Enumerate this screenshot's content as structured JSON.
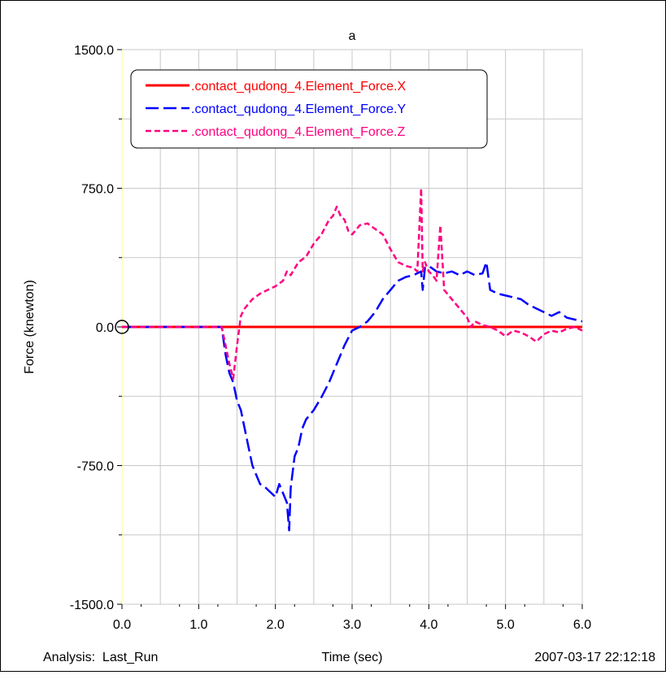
{
  "chart_data": {
    "type": "line",
    "title": "a",
    "xlabel": "Time (sec)",
    "ylabel": "Force (knewton)",
    "xlim": [
      0.0,
      6.0
    ],
    "ylim": [
      -1500.0,
      1500.0
    ],
    "x_ticks": [
      "0.0",
      "1.0",
      "2.0",
      "3.0",
      "4.0",
      "5.0",
      "6.0"
    ],
    "x_tick_values": [
      0,
      1,
      2,
      3,
      4,
      5,
      6
    ],
    "y_ticks": [
      "1500.0",
      "750.0",
      "0.0",
      "-750.0",
      "-1500.0"
    ],
    "y_tick_values": [
      1500,
      750,
      0,
      -750,
      -1500
    ],
    "grid": true,
    "legend_position": "top-left",
    "footer_left": "Analysis:  Last_Run",
    "footer_right": "2007-03-17 22:12:18",
    "series": [
      {
        "name": ".contact_qudong_4.Element_Force.X",
        "color": "#ff0000",
        "dash": "solid",
        "x": [
          0.0,
          6.0
        ],
        "y": [
          0,
          0
        ]
      },
      {
        "name": ".contact_qudong_4.Element_Force.Y",
        "color": "#0000ff",
        "dash": "long-dash",
        "x": [
          0.0,
          1.3,
          1.35,
          1.4,
          1.45,
          1.5,
          1.55,
          1.6,
          1.65,
          1.7,
          1.75,
          1.8,
          1.85,
          1.9,
          1.95,
          2.0,
          2.05,
          2.1,
          2.15,
          2.18,
          2.2,
          2.25,
          2.3,
          2.35,
          2.4,
          2.5,
          2.6,
          2.7,
          2.75,
          2.8,
          2.85,
          2.9,
          2.95,
          3.0,
          3.1,
          3.2,
          3.3,
          3.4,
          3.5,
          3.6,
          3.7,
          3.8,
          3.9,
          3.92,
          3.95,
          4.0,
          4.1,
          4.2,
          4.3,
          4.4,
          4.5,
          4.6,
          4.7,
          4.75,
          4.8,
          4.9,
          5.0,
          5.1,
          5.2,
          5.3,
          5.4,
          5.5,
          5.6,
          5.7,
          5.8,
          5.9,
          6.0
        ],
        "y": [
          0,
          0,
          -150,
          -250,
          -300,
          -400,
          -450,
          -550,
          -650,
          -750,
          -800,
          -850,
          -860,
          -880,
          -900,
          -920,
          -850,
          -900,
          -950,
          -1100,
          -870,
          -700,
          -650,
          -550,
          -500,
          -450,
          -380,
          -300,
          -250,
          -200,
          -150,
          -100,
          -60,
          -20,
          0,
          30,
          80,
          150,
          200,
          250,
          270,
          280,
          300,
          200,
          320,
          330,
          300,
          290,
          300,
          280,
          300,
          280,
          290,
          350,
          200,
          180,
          170,
          160,
          150,
          120,
          100,
          80,
          60,
          80,
          50,
          40,
          30
        ]
      },
      {
        "name": ".contact_qudong_4.Element_Force.Z",
        "color": "#ff0080",
        "dash": "short-dash",
        "x": [
          0.0,
          1.3,
          1.35,
          1.4,
          1.45,
          1.5,
          1.55,
          1.6,
          1.7,
          1.8,
          1.9,
          2.0,
          2.1,
          2.15,
          2.2,
          2.3,
          2.4,
          2.5,
          2.6,
          2.7,
          2.75,
          2.8,
          2.85,
          2.9,
          2.95,
          3.0,
          3.1,
          3.2,
          3.3,
          3.4,
          3.5,
          3.6,
          3.7,
          3.8,
          3.85,
          3.9,
          3.92,
          3.95,
          4.0,
          4.05,
          4.1,
          4.15,
          4.2,
          4.3,
          4.4,
          4.5,
          4.55,
          4.6,
          4.7,
          4.8,
          4.9,
          5.0,
          5.1,
          5.2,
          5.3,
          5.4,
          5.5,
          5.6,
          5.7,
          5.8,
          5.9,
          6.0
        ],
        "y": [
          0,
          0,
          -100,
          -200,
          -280,
          -100,
          60,
          100,
          150,
          180,
          200,
          220,
          250,
          300,
          280,
          350,
          380,
          450,
          500,
          580,
          600,
          650,
          600,
          580,
          520,
          500,
          550,
          560,
          530,
          500,
          420,
          350,
          330,
          320,
          300,
          750,
          300,
          350,
          300,
          280,
          250,
          550,
          200,
          150,
          100,
          50,
          0,
          30,
          10,
          0,
          -20,
          -50,
          -20,
          -30,
          -50,
          -80,
          -40,
          -20,
          -30,
          -10,
          0,
          -20
        ]
      }
    ]
  }
}
